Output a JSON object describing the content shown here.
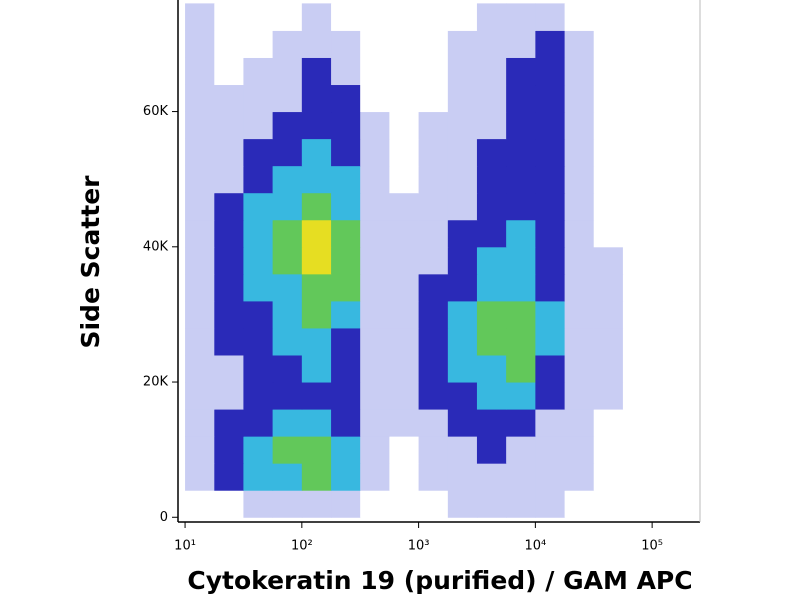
{
  "chart_data": {
    "type": "density",
    "xlabel": "Cytokeratin 19 (purified) / GAM APC",
    "ylabel": "Side Scatter",
    "xscale": "log",
    "xlim": [
      8.7,
      257000
    ],
    "ylim": [
      -700,
      76500
    ],
    "xticks": [
      {
        "value": 10,
        "label": "10¹"
      },
      {
        "value": 100,
        "label": "10²"
      },
      {
        "value": 1000,
        "label": "10³"
      },
      {
        "value": 10000,
        "label": "10⁴"
      },
      {
        "value": 100000,
        "label": "10⁵"
      }
    ],
    "yticks": [
      0,
      {
        "value": 20000,
        "label": "20K"
      },
      {
        "value": 40000,
        "label": "40K"
      },
      {
        "value": 60000,
        "label": "60K"
      }
    ],
    "xbins": [
      10,
      17.8,
      31.6,
      56.2,
      100,
      178,
      316,
      562,
      1000,
      1780,
      3160,
      5620,
      10000,
      17800,
      31600,
      56200,
      100000,
      178000
    ],
    "ybins": [
      0,
      4000,
      8000,
      12000,
      16000,
      20000,
      24000,
      28000,
      32000,
      36000,
      40000,
      44000,
      48000,
      52000,
      56000,
      60000,
      64000,
      68000,
      72000,
      76000
    ],
    "level_colors": [
      "#ffffff",
      "#c9cdf3",
      "#2a2ab8",
      "#38b8e0",
      "#62c85a",
      "#e6de22"
    ],
    "density": [
      [
        0,
        0,
        1,
        1,
        1,
        1,
        0,
        0,
        0,
        1,
        1,
        1,
        1,
        0,
        0,
        0,
        0
      ],
      [
        1,
        2,
        3,
        3,
        4,
        3,
        1,
        0,
        1,
        1,
        1,
        1,
        1,
        1,
        0,
        0,
        0
      ],
      [
        1,
        2,
        3,
        4,
        4,
        3,
        1,
        0,
        1,
        1,
        2,
        1,
        1,
        1,
        0,
        0,
        0
      ],
      [
        1,
        2,
        2,
        3,
        3,
        2,
        1,
        1,
        1,
        2,
        2,
        2,
        1,
        1,
        0,
        0,
        0
      ],
      [
        1,
        1,
        2,
        2,
        2,
        2,
        1,
        1,
        2,
        2,
        3,
        3,
        2,
        1,
        1,
        0,
        0
      ],
      [
        1,
        1,
        2,
        2,
        3,
        2,
        1,
        1,
        2,
        3,
        3,
        4,
        2,
        1,
        1,
        0,
        0
      ],
      [
        1,
        2,
        2,
        3,
        3,
        2,
        1,
        1,
        2,
        3,
        4,
        4,
        3,
        1,
        1,
        0,
        0
      ],
      [
        1,
        2,
        2,
        3,
        4,
        3,
        1,
        1,
        2,
        3,
        4,
        4,
        3,
        1,
        1,
        0,
        0
      ],
      [
        1,
        2,
        3,
        3,
        4,
        4,
        1,
        1,
        2,
        2,
        3,
        3,
        2,
        1,
        1,
        0,
        0
      ],
      [
        1,
        2,
        3,
        4,
        5,
        4,
        1,
        1,
        1,
        2,
        3,
        3,
        2,
        1,
        1,
        0,
        0
      ],
      [
        1,
        2,
        3,
        4,
        5,
        4,
        1,
        1,
        1,
        2,
        2,
        3,
        2,
        1,
        0,
        0,
        0
      ],
      [
        1,
        2,
        3,
        3,
        4,
        3,
        1,
        1,
        1,
        1,
        2,
        2,
        2,
        1,
        0,
        0,
        0
      ],
      [
        1,
        1,
        2,
        3,
        3,
        3,
        1,
        0,
        1,
        1,
        2,
        2,
        2,
        1,
        0,
        0,
        0
      ],
      [
        1,
        1,
        2,
        2,
        3,
        2,
        1,
        0,
        1,
        1,
        2,
        2,
        2,
        1,
        0,
        0,
        0
      ],
      [
        1,
        1,
        1,
        2,
        2,
        2,
        1,
        0,
        1,
        1,
        1,
        2,
        2,
        1,
        0,
        0,
        0
      ],
      [
        1,
        1,
        1,
        1,
        2,
        2,
        0,
        0,
        0,
        1,
        1,
        2,
        2,
        1,
        0,
        0,
        0
      ],
      [
        1,
        0,
        1,
        1,
        2,
        1,
        0,
        0,
        0,
        1,
        1,
        2,
        2,
        1,
        0,
        0,
        0
      ],
      [
        1,
        0,
        0,
        1,
        1,
        1,
        0,
        0,
        0,
        1,
        1,
        1,
        2,
        1,
        0,
        0,
        0
      ],
      [
        1,
        0,
        0,
        0,
        1,
        0,
        0,
        0,
        0,
        0,
        1,
        1,
        1,
        0,
        0,
        0,
        0
      ]
    ]
  }
}
